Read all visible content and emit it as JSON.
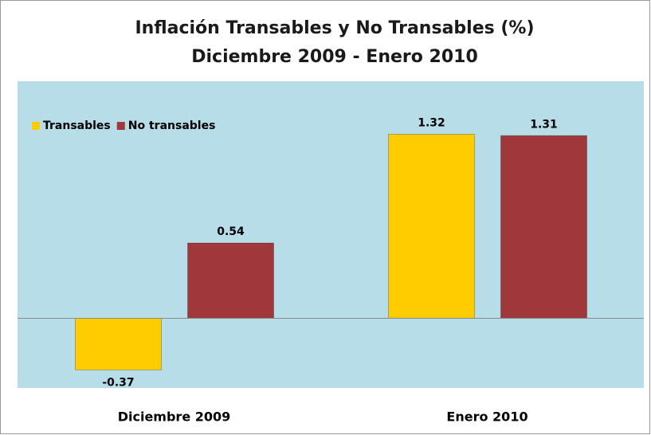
{
  "chart_data": {
    "type": "bar",
    "title": "Inflación Transables y No Transables (%)",
    "subtitle": "Diciembre 2009 - Enero 2010",
    "categories": [
      "Diciembre 2009",
      "Enero 2010"
    ],
    "series": [
      {
        "name": "Transables",
        "color": "#ffcc00",
        "values": [
          -0.37,
          1.32
        ]
      },
      {
        "name": "No transables",
        "color": "#a0373a",
        "values": [
          0.54,
          1.31
        ]
      }
    ],
    "ylim": [
      -0.5,
      1.7
    ],
    "legend": "top-left"
  }
}
